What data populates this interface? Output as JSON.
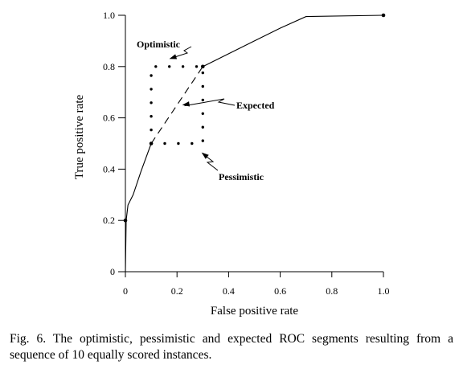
{
  "chart_data": {
    "type": "line",
    "title": "",
    "xlabel": "False positive rate",
    "ylabel": "True positive rate",
    "xlim": [
      0,
      1
    ],
    "ylim": [
      0,
      1
    ],
    "xticks": [
      0,
      0.2,
      0.4,
      0.6,
      0.8,
      1.0
    ],
    "xtick_labels": [
      "0",
      "0.2",
      "0.4",
      "0.6",
      "0.8",
      "1.0"
    ],
    "yticks": [
      0,
      0.2,
      0.4,
      0.6,
      0.8,
      1.0
    ],
    "ytick_labels": [
      "0",
      "0.2",
      "0.4",
      "0.6",
      "0.8",
      "1.0"
    ],
    "grid": false,
    "series": [
      {
        "style": "solid",
        "x": [
          0,
          0.003,
          0.01,
          0.03,
          0.06,
          0.1
        ],
        "y": [
          0,
          0.2,
          0.26,
          0.3,
          0.39,
          0.5
        ]
      },
      {
        "style": "dashed",
        "x": [
          0.1,
          0.3
        ],
        "y": [
          0.5,
          0.8
        ]
      },
      {
        "style": "solid",
        "x": [
          0.3,
          0.5,
          0.6,
          0.7,
          1.0
        ],
        "y": [
          0.8,
          0.9,
          0.95,
          0.995,
          1.0
        ]
      },
      {
        "style": "dotted",
        "x": [
          0.1,
          0.1,
          0.3
        ],
        "y": [
          0.5,
          0.8,
          0.8
        ]
      },
      {
        "style": "dotted",
        "x": [
          0.1,
          0.3,
          0.3
        ],
        "y": [
          0.5,
          0.5,
          0.8
        ]
      }
    ],
    "markers": [
      {
        "x": 0,
        "y": 0.2
      },
      {
        "x": 0.1,
        "y": 0.5
      },
      {
        "x": 0.3,
        "y": 0.8
      },
      {
        "x": 1.0,
        "y": 1.0
      }
    ],
    "annotations": [
      {
        "text": "Optimistic",
        "target": {
          "x": 0.17,
          "y": 0.83
        },
        "placement": "above"
      },
      {
        "text": "Expected",
        "target": {
          "x": 0.22,
          "y": 0.65
        },
        "placement": "right"
      },
      {
        "text": "Pessimistic",
        "target": {
          "x": 0.295,
          "y": 0.465
        },
        "placement": "below"
      }
    ]
  },
  "caption": "Fig. 6. The optimistic, pessimistic and expected ROC segments resulting from a sequence of 10 equally scored instances."
}
